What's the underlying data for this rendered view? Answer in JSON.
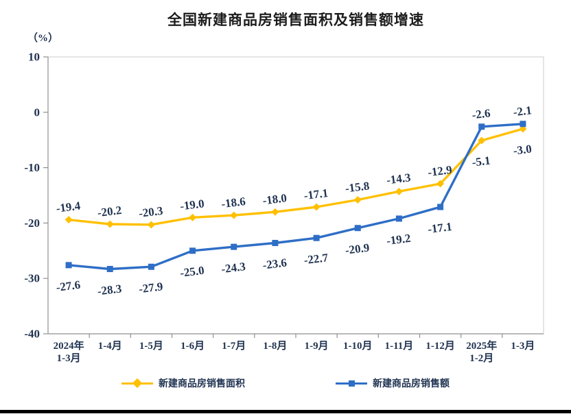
{
  "page": {
    "title": "全国新建商品房销售面积及销售额增速",
    "y_axis_unit": "（%）"
  },
  "palette": {
    "text": "#1F3250",
    "title": "#1C1C1C",
    "axis": "#8F8F8F",
    "frame": "#CBCBCB",
    "bottom_bar": "#000000",
    "sales_area_line": "#FFC000",
    "sales_amount_line": "#2E6EC6"
  },
  "chart_data": {
    "type": "line",
    "title": "全国新建商品房销售面积及销售额增速",
    "ylabel": "（%）",
    "xlabel": "",
    "ylim": [
      -40,
      10
    ],
    "yticks": [
      10,
      0,
      -10,
      -20,
      -30,
      -40
    ],
    "grid": false,
    "legend_position": "bottom",
    "categories": [
      "2024年\n1-3月",
      "1-4月",
      "1-5月",
      "1-6月",
      "1-7月",
      "1-8月",
      "1-9月",
      "1-10月",
      "1-11月",
      "1-12月",
      "2025年\n1-2月",
      "1-3月"
    ],
    "series": [
      {
        "name": "新建商品房销售面积",
        "color": "#FFC000",
        "marker": "diamond",
        "label_position": "above",
        "label_flip_from_index": 10,
        "values": [
          -19.4,
          -20.2,
          -20.3,
          -19.0,
          -18.6,
          -18.0,
          -17.1,
          -15.8,
          -14.3,
          -12.9,
          -5.1,
          -3.0
        ]
      },
      {
        "name": "新建商品房销售额",
        "color": "#2E6EC6",
        "marker": "square",
        "label_position": "below",
        "label_flip_from_index": 10,
        "values": [
          -27.6,
          -28.3,
          -27.9,
          -25.0,
          -24.3,
          -23.6,
          -22.7,
          -20.9,
          -19.2,
          -17.1,
          -2.6,
          -2.1
        ]
      }
    ]
  }
}
